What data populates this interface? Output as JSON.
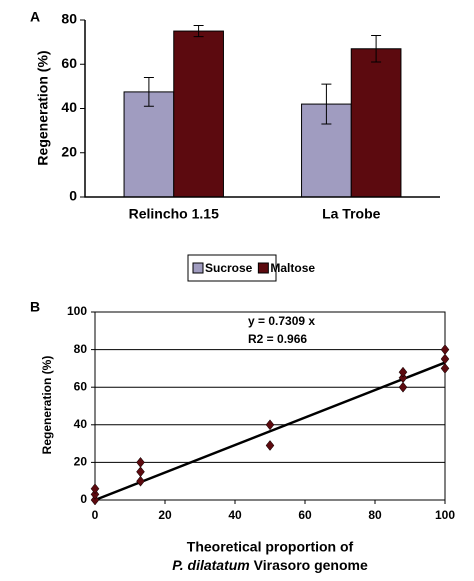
{
  "chart_data": [
    {
      "type": "bar",
      "panel": "A",
      "y_label": "Regeneration (%)",
      "categories": [
        "Relincho 1.15",
        "La Trobe"
      ],
      "series": [
        {
          "name": "Sucrose",
          "color": "#a09cc0",
          "values": [
            47.5,
            42
          ],
          "errors": [
            6.5,
            9
          ]
        },
        {
          "name": "Maltose",
          "color": "#5c0a0f",
          "values": [
            75,
            67
          ],
          "errors": [
            2.5,
            6
          ]
        }
      ],
      "ylim": [
        0,
        80
      ],
      "yticks": [
        0,
        20,
        40,
        60,
        80
      ],
      "grid": false,
      "legend": "bottom"
    },
    {
      "type": "scatter",
      "panel": "B",
      "y_label": "Regeneration (%)",
      "x_label": {
        "line1": "Theoretical proportion of",
        "italic": "P. dilatatum",
        "rest": "Virasoro genome"
      },
      "annotations": [
        "y = 0.7309 x",
        "R2 = 0.966"
      ],
      "trend_slope": 0.7309,
      "color": "#5c0a0f",
      "x": [
        0,
        0,
        0,
        13,
        13,
        13,
        50,
        50,
        88,
        88,
        88,
        100,
        100,
        100
      ],
      "y": [
        0,
        3,
        6,
        10,
        15,
        20,
        29,
        40,
        60,
        65,
        68,
        70,
        75,
        80
      ],
      "xlim": [
        0,
        100
      ],
      "xticks": [
        0,
        20,
        40,
        60,
        80,
        100
      ],
      "ylim": [
        0,
        100
      ],
      "yticks": [
        0,
        20,
        40,
        60,
        80,
        100
      ],
      "grid": true
    }
  ]
}
